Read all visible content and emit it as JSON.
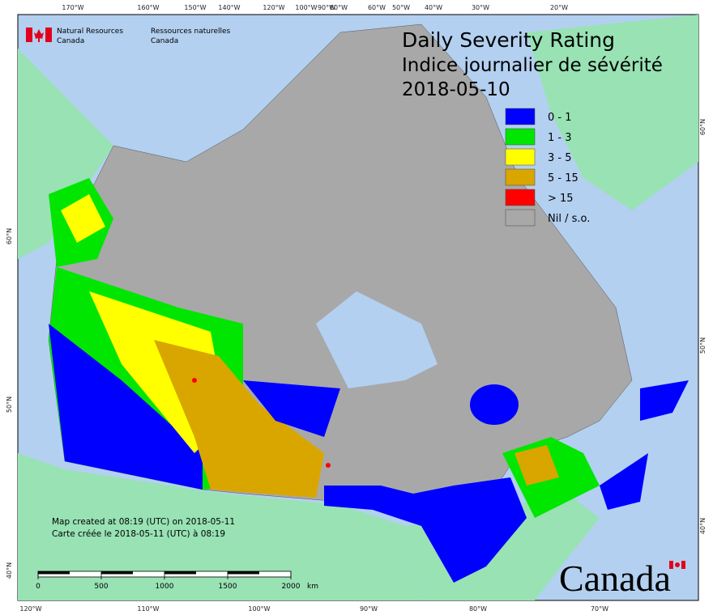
{
  "header": {
    "agency_en": [
      "Natural Resources",
      "Canada"
    ],
    "agency_fr": [
      "Ressources naturelles",
      "Canada"
    ]
  },
  "title": {
    "line1": "Daily Severity Rating",
    "line2": "Indice journalier de sévérité",
    "date": "2018-05-10"
  },
  "legend": [
    {
      "label": "0 - 1",
      "color": "#0000ff"
    },
    {
      "label": "1 - 3",
      "color": "#00e600"
    },
    {
      "label": "3 - 5",
      "color": "#ffff00"
    },
    {
      "label": "5 - 15",
      "color": "#d9a600"
    },
    {
      "label": "> 15",
      "color": "#ff0000"
    },
    {
      "label": "Nil / s.o.",
      "color": "#a8a8a8"
    }
  ],
  "top_longitudes": [
    "170°W",
    "160°W",
    "150°W",
    "140°W",
    "120°W",
    "100°W",
    "90°W",
    "80°W",
    "60°W",
    "50°W",
    "40°W",
    "30°W",
    "20°W"
  ],
  "bottom_longitudes": [
    "120°W",
    "110°W",
    "100°W",
    "90°W",
    "80°W",
    "70°W"
  ],
  "left_latitudes": [
    "60°N",
    "50°N",
    "40°N"
  ],
  "right_latitudes": [
    "60°N",
    "50°N",
    "40°N"
  ],
  "footer": {
    "created_en": "Map created at 08:19 (UTC) on 2018-05-11",
    "created_fr": "Carte créée le 2018-05-11 (UTC) à 08:19"
  },
  "scale_bar": {
    "labels": [
      0,
      500,
      1000,
      1500,
      2000
    ],
    "unit": "km"
  },
  "wordmark": "Canada"
}
